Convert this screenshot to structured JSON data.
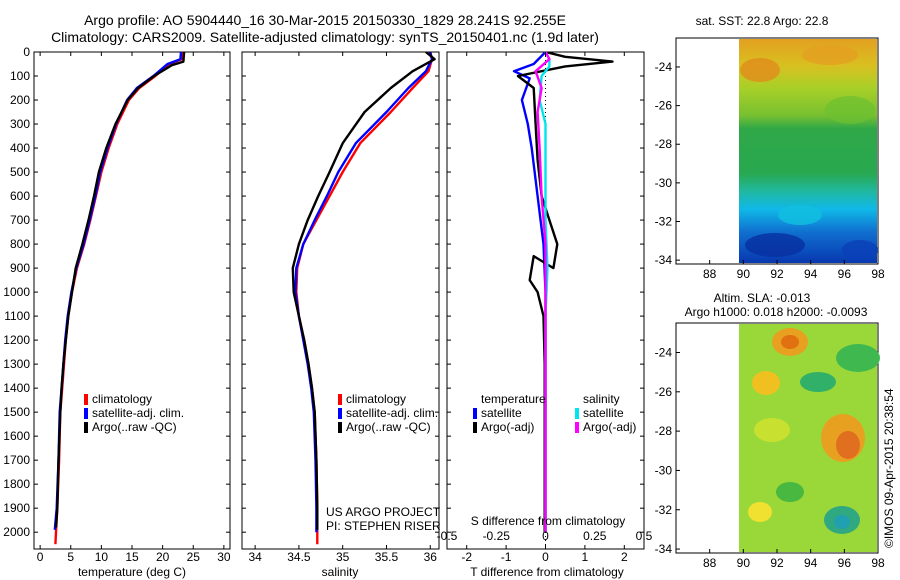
{
  "header": {
    "line1": "Argo profile: AO 5904440_16 30-Mar-2015 20150330_1829 28.241S 92.255E",
    "line2": "Climatology: CARS2009. Satellite-adjusted climatology: synTS_20150401.nc (1.9d later)"
  },
  "colors": {
    "climatology": "#ff0000",
    "satellite": "#0000ff",
    "argo": "#000000",
    "salinity_satellite": "#00e5ee",
    "salinity_argo": "#ff00ff"
  },
  "depth_axis": {
    "ticks": [
      "0",
      "100",
      "200",
      "300",
      "400",
      "500",
      "600",
      "700",
      "800",
      "900",
      "1000",
      "1100",
      "1200",
      "1300",
      "1400",
      "1500",
      "1600",
      "1700",
      "1800",
      "1900",
      "2000"
    ],
    "ylim": [
      0,
      2070
    ]
  },
  "chart_data": [
    {
      "type": "line",
      "panel": "temperature",
      "xlabel": "temperature (deg C)",
      "xlim": [
        -1,
        31
      ],
      "xticks": [
        "0",
        "5",
        "10",
        "15",
        "20",
        "25",
        "30"
      ],
      "xtick_values": [
        0,
        5,
        10,
        15,
        20,
        25,
        30
      ],
      "legend": [
        "climatology",
        "satellite-adj. clim.",
        "Argo(..raw -QC)"
      ],
      "series": [
        {
          "name": "climatology",
          "color": "#ff0000",
          "points": [
            [
              23.2,
              0
            ],
            [
              23.1,
              30
            ],
            [
              21,
              50
            ],
            [
              18.8,
              100
            ],
            [
              16.2,
              150
            ],
            [
              14.5,
              200
            ],
            [
              12.6,
              300
            ],
            [
              11.2,
              400
            ],
            [
              10,
              500
            ],
            [
              9.1,
              600
            ],
            [
              8.2,
              700
            ],
            [
              7.2,
              800
            ],
            [
              6,
              900
            ],
            [
              5.2,
              1000
            ],
            [
              4.6,
              1100
            ],
            [
              4.2,
              1200
            ],
            [
              3.9,
              1300
            ],
            [
              3.6,
              1400
            ],
            [
              3.3,
              1500
            ],
            [
              3.1,
              1700
            ],
            [
              2.8,
              1900
            ],
            [
              2.6,
              2000
            ],
            [
              2.5,
              2050
            ]
          ]
        },
        {
          "name": "satellite",
          "color": "#0000ff",
          "points": [
            [
              23.0,
              0
            ],
            [
              22.9,
              30
            ],
            [
              20.8,
              50
            ],
            [
              18.5,
              100
            ],
            [
              15.8,
              150
            ],
            [
              14.2,
              200
            ],
            [
              12.4,
              300
            ],
            [
              11,
              400
            ],
            [
              9.8,
              500
            ],
            [
              9,
              600
            ],
            [
              8.1,
              700
            ],
            [
              7.1,
              800
            ],
            [
              5.9,
              900
            ],
            [
              5.1,
              1000
            ],
            [
              4.5,
              1100
            ],
            [
              4.1,
              1200
            ],
            [
              3.8,
              1300
            ],
            [
              3.5,
              1400
            ],
            [
              3.2,
              1500
            ],
            [
              3,
              1700
            ],
            [
              2.7,
              1900
            ],
            [
              2.4,
              1990
            ]
          ]
        },
        {
          "name": "argo",
          "color": "#000000",
          "points": [
            [
              23.5,
              0
            ],
            [
              23.4,
              40
            ],
            [
              21.5,
              55
            ],
            [
              18.6,
              100
            ],
            [
              16,
              150
            ],
            [
              14.3,
              200
            ],
            [
              12.3,
              300
            ],
            [
              10.8,
              400
            ],
            [
              9.6,
              500
            ],
            [
              8.8,
              600
            ],
            [
              7.9,
              700
            ],
            [
              6.9,
              800
            ],
            [
              5.8,
              900
            ],
            [
              5.2,
              1000
            ],
            [
              4.6,
              1100
            ],
            [
              4.2,
              1200
            ],
            [
              3.8,
              1300
            ],
            [
              3.5,
              1400
            ],
            [
              3.3,
              1500
            ],
            [
              3,
              1700
            ],
            [
              2.8,
              1900
            ],
            [
              2.6,
              1980
            ]
          ]
        }
      ]
    },
    {
      "type": "line",
      "panel": "salinity",
      "xlabel": "salinity",
      "xlim": [
        33.85,
        36.1
      ],
      "xticks": [
        "34",
        "34.5",
        "35",
        "35.5",
        "36"
      ],
      "xtick_values": [
        34,
        34.5,
        35,
        35.5,
        36
      ],
      "legend": [
        "climatology",
        "satellite-adj. clim.",
        "Argo(..raw -QC)"
      ],
      "annotation": [
        "US ARGO PROJECT",
        "PI: STEPHEN RISER"
      ],
      "series": [
        {
          "name": "climatology",
          "color": "#ff0000",
          "points": [
            [
              36.0,
              0
            ],
            [
              36.02,
              30
            ],
            [
              35.98,
              80
            ],
            [
              35.8,
              150
            ],
            [
              35.55,
              250
            ],
            [
              35.2,
              380
            ],
            [
              35.0,
              500
            ],
            [
              34.85,
              600
            ],
            [
              34.7,
              700
            ],
            [
              34.55,
              800
            ],
            [
              34.48,
              900
            ],
            [
              34.47,
              1000
            ],
            [
              34.5,
              1100
            ],
            [
              34.56,
              1200
            ],
            [
              34.61,
              1300
            ],
            [
              34.65,
              1400
            ],
            [
              34.68,
              1500
            ],
            [
              34.7,
              1700
            ],
            [
              34.71,
              1900
            ],
            [
              34.71,
              2050
            ]
          ]
        },
        {
          "name": "satellite",
          "color": "#0000ff",
          "points": [
            [
              36.0,
              0
            ],
            [
              36.02,
              30
            ],
            [
              35.95,
              80
            ],
            [
              35.75,
              150
            ],
            [
              35.5,
              250
            ],
            [
              35.15,
              380
            ],
            [
              34.95,
              500
            ],
            [
              34.82,
              600
            ],
            [
              34.68,
              700
            ],
            [
              34.55,
              800
            ],
            [
              34.47,
              900
            ],
            [
              34.46,
              1000
            ],
            [
              34.5,
              1100
            ],
            [
              34.55,
              1200
            ],
            [
              34.6,
              1300
            ],
            [
              34.64,
              1400
            ],
            [
              34.67,
              1500
            ],
            [
              34.69,
              1700
            ],
            [
              34.7,
              1900
            ],
            [
              34.7,
              2000
            ]
          ]
        },
        {
          "name": "argo",
          "color": "#000000",
          "points": [
            [
              35.95,
              0
            ],
            [
              36.05,
              30
            ],
            [
              35.8,
              80
            ],
            [
              35.55,
              150
            ],
            [
              35.25,
              250
            ],
            [
              35.0,
              380
            ],
            [
              34.85,
              500
            ],
            [
              34.72,
              600
            ],
            [
              34.6,
              700
            ],
            [
              34.5,
              800
            ],
            [
              34.43,
              900
            ],
            [
              34.44,
              1000
            ],
            [
              34.5,
              1100
            ],
            [
              34.56,
              1200
            ],
            [
              34.61,
              1300
            ],
            [
              34.65,
              1400
            ],
            [
              34.68,
              1500
            ],
            [
              34.7,
              1700
            ],
            [
              34.71,
              1900
            ],
            [
              34.71,
              1990
            ]
          ]
        }
      ]
    },
    {
      "type": "line",
      "panel": "difference",
      "xlabel": "T difference from climatology",
      "xlim": [
        -2.5,
        2.5
      ],
      "xticks": [
        "-2",
        "-1",
        "0",
        "1",
        "2"
      ],
      "xtick_values": [
        -2,
        -1,
        0,
        1,
        2
      ],
      "top_label": "S difference from climatology",
      "top_ticks": [
        "-0.5",
        "-0.25",
        "0",
        "0.25",
        "0.5"
      ],
      "top_tick_values": [
        -0.5,
        -0.25,
        0,
        0.25,
        0.5
      ],
      "legend_temperature_title": "temperature",
      "legend_salinity_title": "salinity",
      "legend_temperature": [
        "satellite",
        "Argo(-adj)"
      ],
      "legend_salinity": [
        "satellite",
        "Argo(-adj)"
      ],
      "series": [
        {
          "name": "T satellite",
          "color": "#0000ff",
          "points": [
            [
              0,
              0
            ],
            [
              -0.3,
              50
            ],
            [
              -0.8,
              80
            ],
            [
              -0.4,
              110
            ],
            [
              -0.6,
              200
            ],
            [
              -0.45,
              300
            ],
            [
              -0.35,
              400
            ],
            [
              -0.2,
              600
            ],
            [
              -0.05,
              800
            ],
            [
              0,
              1000
            ],
            [
              0,
              1200
            ],
            [
              0,
              1500
            ],
            [
              0,
              2000
            ]
          ]
        },
        {
          "name": "T Argo",
          "color": "#000000",
          "points": [
            [
              0,
              0
            ],
            [
              0.5,
              20
            ],
            [
              1.7,
              40
            ],
            [
              0.5,
              60
            ],
            [
              -0.7,
              100
            ],
            [
              -0.3,
              150
            ],
            [
              -0.25,
              300
            ],
            [
              -0.2,
              450
            ],
            [
              -0.1,
              600
            ],
            [
              0.1,
              700
            ],
            [
              0.3,
              800
            ],
            [
              0.2,
              900
            ],
            [
              -0.3,
              850
            ],
            [
              -0.4,
              950
            ],
            [
              -0.2,
              1000
            ],
            [
              -0.05,
              1100
            ],
            [
              -0.02,
              1300
            ],
            [
              -0.02,
              1600
            ],
            [
              -0.02,
              2000
            ]
          ]
        },
        {
          "name": "S satellite",
          "color": "#00e5ee",
          "points": [
            [
              0,
              0
            ],
            [
              0.02,
              30
            ],
            [
              0.02,
              60
            ],
            [
              -0.02,
              100
            ],
            [
              -0.03,
              200
            ],
            [
              0,
              300
            ],
            [
              0,
              500
            ],
            [
              0,
              700
            ],
            [
              0.01,
              900
            ],
            [
              0,
              1100
            ],
            [
              0,
              1500
            ],
            [
              0,
              2000
            ]
          ]
        },
        {
          "name": "S Argo",
          "color": "#ff00ff",
          "points": [
            [
              0,
              0
            ],
            [
              0.02,
              30
            ],
            [
              -0.05,
              80
            ],
            [
              -0.02,
              150
            ],
            [
              -0.04,
              250
            ],
            [
              -0.03,
              400
            ],
            [
              -0.02,
              600
            ],
            [
              0,
              800
            ],
            [
              0,
              1000
            ],
            [
              0,
              1500
            ],
            [
              0,
              2000
            ]
          ]
        }
      ]
    },
    {
      "type": "heatmap",
      "panel": "sst",
      "title": "sat. SST: 22.8  Argo: 22.8",
      "xticks": [
        "88",
        "90",
        "92",
        "94",
        "96",
        "98"
      ],
      "xtick_values": [
        88,
        90,
        92,
        94,
        96,
        98
      ],
      "yticks": [
        "-24",
        "-26",
        "-28",
        "-30",
        "-32",
        "-34"
      ],
      "ytick_values": [
        -24,
        -26,
        -28,
        -30,
        -32,
        -34
      ],
      "xlim": [
        86,
        98
      ],
      "ylim": [
        -34.2,
        -22.5
      ],
      "data_lon_range": [
        90,
        98
      ]
    },
    {
      "type": "heatmap",
      "panel": "sla",
      "title_line1": "Altim. SLA: -0.013",
      "title_line2": "Argo h1000: 0.018 h2000: -0.0093",
      "xticks": [
        "88",
        "90",
        "92",
        "94",
        "96",
        "98"
      ],
      "xtick_values": [
        88,
        90,
        92,
        94,
        96,
        98
      ],
      "yticks": [
        "-24",
        "-26",
        "-28",
        "-30",
        "-32",
        "-34"
      ],
      "ytick_values": [
        -24,
        -26,
        -28,
        -30,
        -32,
        -34
      ],
      "xlim": [
        86,
        98
      ],
      "ylim": [
        -34.2,
        -22.5
      ],
      "data_lon_range": [
        90,
        98
      ]
    }
  ],
  "credit": "©IMOS 09-Apr-2015 20:38:54"
}
